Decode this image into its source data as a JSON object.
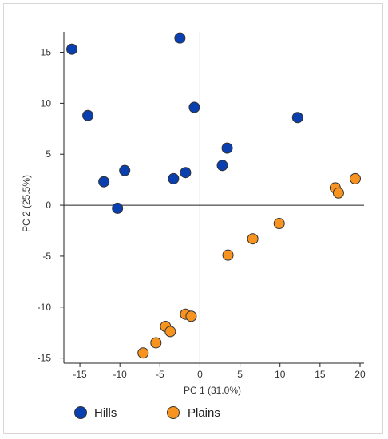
{
  "chart_data": {
    "type": "scatter",
    "title": "",
    "xlabel": "PC 1 (31.0%)",
    "ylabel": "PC 2 (25.5%)",
    "xlim": [
      -17,
      20.5
    ],
    "ylim": [
      -15.5,
      17
    ],
    "xticks": [
      -15,
      -10,
      -5,
      0,
      5,
      10,
      15,
      20
    ],
    "yticks": [
      -15,
      -10,
      -5,
      0,
      5,
      10,
      15
    ],
    "grid": false,
    "legend_position": "bottom",
    "series": [
      {
        "name": "Hills",
        "color": "#0a3fb0",
        "points": [
          [
            -16,
            15.3
          ],
          [
            -2.5,
            16.4
          ],
          [
            -14,
            8.8
          ],
          [
            -0.7,
            9.6
          ],
          [
            12.2,
            8.6
          ],
          [
            3.4,
            5.6
          ],
          [
            2.8,
            3.9
          ],
          [
            -9.4,
            3.4
          ],
          [
            -12,
            2.3
          ],
          [
            -1.8,
            3.2
          ],
          [
            -3.3,
            2.6
          ],
          [
            -10.3,
            -0.3
          ]
        ]
      },
      {
        "name": "Plains",
        "color": "#f7931e",
        "points": [
          [
            19.4,
            2.6
          ],
          [
            16.9,
            1.7
          ],
          [
            17.3,
            1.2
          ],
          [
            9.9,
            -1.8
          ],
          [
            6.6,
            -3.3
          ],
          [
            3.5,
            -4.9
          ],
          [
            -1.8,
            -10.7
          ],
          [
            -1.1,
            -10.9
          ],
          [
            -4.3,
            -11.9
          ],
          [
            -3.7,
            -12.4
          ],
          [
            -5.5,
            -13.5
          ],
          [
            -7.1,
            -14.5
          ]
        ]
      }
    ]
  }
}
